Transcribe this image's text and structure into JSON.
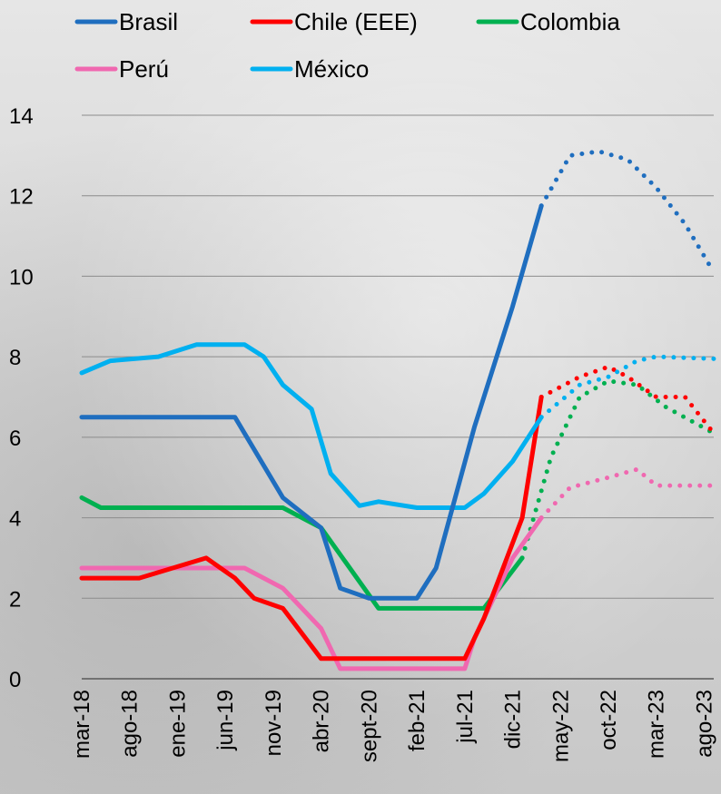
{
  "chart_data": {
    "type": "line",
    "title": "",
    "xlabel": "",
    "ylabel": "",
    "ylim": [
      0,
      14
    ],
    "yticks": [
      0,
      2,
      4,
      6,
      8,
      10,
      12,
      14
    ],
    "grid": "horizontal",
    "legend_placement": "top",
    "x_tick_labels": [
      "mar-18",
      "ago-18",
      "ene-19",
      "jun-19",
      "nov-19",
      "abr-20",
      "sept-20",
      "feb-21",
      "jul-21",
      "dic-21",
      "may-22",
      "oct-22",
      "mar-23",
      "ago-23"
    ],
    "x_start": "2018-03",
    "x_end": "2023-09",
    "series": [
      {
        "name": "Brasil",
        "color": "#1f6ebf",
        "solid": [
          [
            "2018-03",
            6.5
          ],
          [
            "2019-07",
            6.5
          ],
          [
            "2019-12",
            4.5
          ],
          [
            "2020-04",
            3.75
          ],
          [
            "2020-06",
            2.25
          ],
          [
            "2020-09",
            2.0
          ],
          [
            "2021-02",
            2.0
          ],
          [
            "2021-04",
            2.75
          ],
          [
            "2021-08",
            6.25
          ],
          [
            "2021-12",
            9.25
          ],
          [
            "2022-03",
            11.75
          ]
        ],
        "dotted": [
          [
            "2022-03",
            11.75
          ],
          [
            "2022-06",
            13.0
          ],
          [
            "2022-09",
            13.1
          ],
          [
            "2022-12",
            12.9
          ],
          [
            "2023-03",
            12.2
          ],
          [
            "2023-06",
            11.3
          ],
          [
            "2023-09",
            10.1
          ]
        ]
      },
      {
        "name": "Chile (EEE)",
        "color": "#ff0000",
        "solid": [
          [
            "2018-03",
            2.5
          ],
          [
            "2018-09",
            2.5
          ],
          [
            "2019-04",
            3.0
          ],
          [
            "2019-07",
            2.5
          ],
          [
            "2019-09",
            2.0
          ],
          [
            "2019-12",
            1.75
          ],
          [
            "2020-04",
            0.5
          ],
          [
            "2021-07",
            0.5
          ],
          [
            "2021-09",
            1.5
          ],
          [
            "2022-01",
            4.0
          ],
          [
            "2022-03",
            7.0
          ]
        ],
        "dotted": [
          [
            "2022-03",
            7.0
          ],
          [
            "2022-07",
            7.5
          ],
          [
            "2022-10",
            7.75
          ],
          [
            "2022-12",
            7.5
          ],
          [
            "2023-03",
            7.0
          ],
          [
            "2023-06",
            7.0
          ],
          [
            "2023-09",
            6.1
          ]
        ]
      },
      {
        "name": "Colombia",
        "color": "#00b050",
        "solid": [
          [
            "2018-03",
            4.5
          ],
          [
            "2018-05",
            4.25
          ],
          [
            "2019-12",
            4.25
          ],
          [
            "2020-04",
            3.75
          ],
          [
            "2020-10",
            1.75
          ],
          [
            "2021-09",
            1.75
          ],
          [
            "2022-01",
            3.0
          ]
        ],
        "dotted": [
          [
            "2022-01",
            3.0
          ],
          [
            "2022-04",
            5.5
          ],
          [
            "2022-07",
            7.0
          ],
          [
            "2022-10",
            7.4
          ],
          [
            "2023-01",
            7.3
          ],
          [
            "2023-04",
            6.75
          ],
          [
            "2023-09",
            6.1
          ]
        ]
      },
      {
        "name": "Perú",
        "color": "#f068b0",
        "solid": [
          [
            "2018-03",
            2.75
          ],
          [
            "2019-08",
            2.75
          ],
          [
            "2019-12",
            2.25
          ],
          [
            "2020-04",
            1.25
          ],
          [
            "2020-06",
            0.25
          ],
          [
            "2021-07",
            0.25
          ],
          [
            "2021-08",
            1.0
          ],
          [
            "2021-10",
            2.0
          ],
          [
            "2021-12",
            3.0
          ],
          [
            "2022-03",
            4.0
          ]
        ],
        "dotted": [
          [
            "2022-03",
            4.0
          ],
          [
            "2022-06",
            4.75
          ],
          [
            "2022-10",
            5.0
          ],
          [
            "2023-01",
            5.2
          ],
          [
            "2023-03",
            4.8
          ],
          [
            "2023-09",
            4.8
          ]
        ]
      },
      {
        "name": "México",
        "color": "#00b0f0",
        "solid": [
          [
            "2018-03",
            7.6
          ],
          [
            "2018-06",
            7.9
          ],
          [
            "2018-11",
            8.0
          ],
          [
            "2019-03",
            8.3
          ],
          [
            "2019-08",
            8.3
          ],
          [
            "2019-10",
            8.0
          ],
          [
            "2019-12",
            7.3
          ],
          [
            "2020-03",
            6.7
          ],
          [
            "2020-05",
            5.1
          ],
          [
            "2020-08",
            4.3
          ],
          [
            "2020-10",
            4.4
          ],
          [
            "2021-02",
            4.25
          ],
          [
            "2021-07",
            4.25
          ],
          [
            "2021-09",
            4.6
          ],
          [
            "2021-12",
            5.4
          ],
          [
            "2022-03",
            6.5
          ]
        ],
        "dotted": [
          [
            "2022-03",
            6.5
          ],
          [
            "2022-07",
            7.3
          ],
          [
            "2022-10",
            7.5
          ],
          [
            "2023-01",
            7.9
          ],
          [
            "2023-03",
            8.0
          ],
          [
            "2023-09",
            7.95
          ]
        ]
      }
    ]
  }
}
